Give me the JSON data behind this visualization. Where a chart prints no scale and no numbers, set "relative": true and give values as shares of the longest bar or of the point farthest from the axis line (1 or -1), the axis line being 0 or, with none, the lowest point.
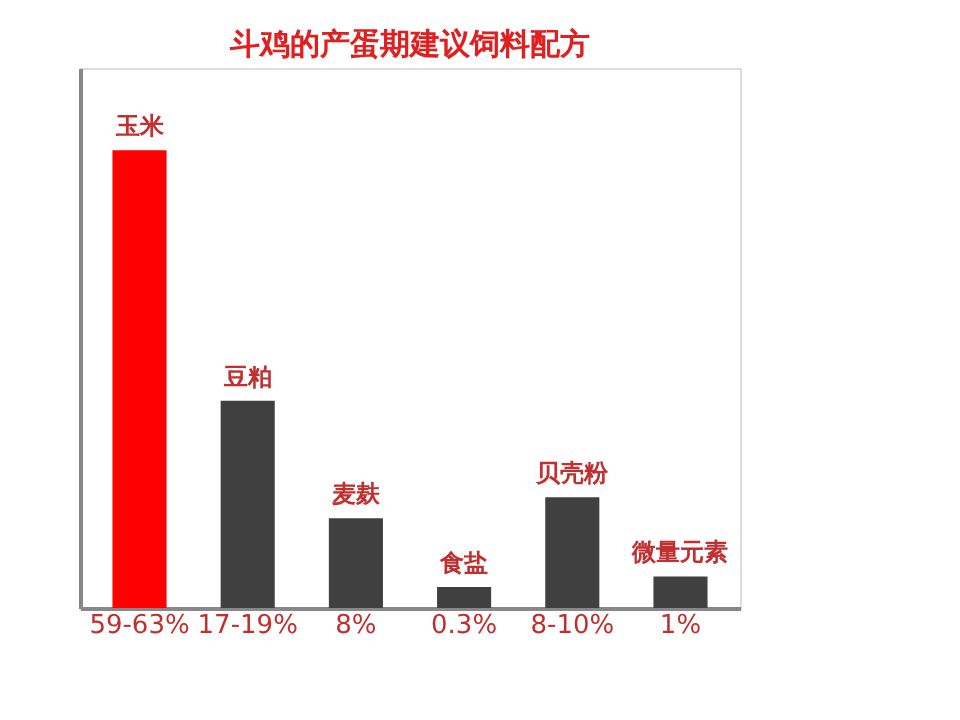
{
  "chart_data": {
    "type": "bar",
    "title": "斗鸡的产蛋期建议饲料配方",
    "relative": true,
    "categories": [
      "59-63%",
      "17-19%",
      "8%",
      "0.3%",
      "8-10%",
      "1%"
    ],
    "values": [
      1,
      0.453,
      0.196,
      0.046,
      0.242,
      0.069
    ],
    "colors": [
      "#ff0000",
      "#404040",
      "#404040",
      "#404040",
      "#404040",
      "#404040"
    ],
    "annotations": [
      {
        "text": "玉米",
        "x": "59-63%",
        "y": 1
      },
      {
        "text": "豆粕",
        "x": "17-19%",
        "y": 0.453
      },
      {
        "text": "麦麸",
        "x": "8%",
        "y": 0.196
      },
      {
        "text": "食盐",
        "x": "0.3%",
        "y": 0.046
      },
      {
        "text": "贝壳粉",
        "x": "8-10%",
        "y": 0.242
      },
      {
        "text": "微量元素",
        "x": "1%",
        "y": 0.069
      }
    ],
    "grid": false
  }
}
